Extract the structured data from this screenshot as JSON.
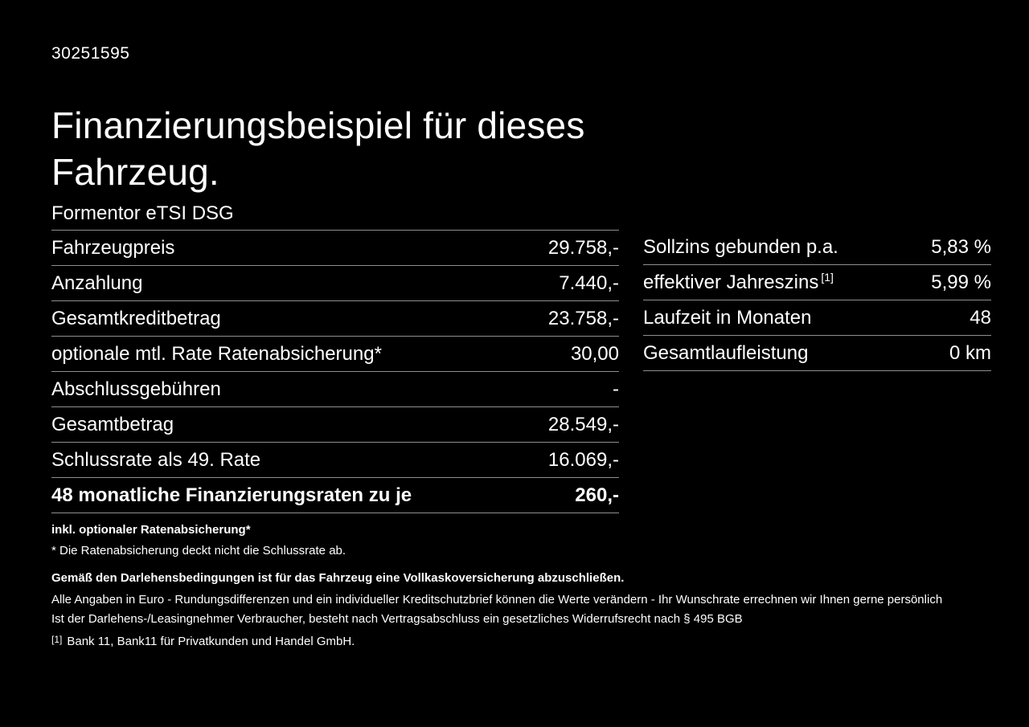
{
  "colors": {
    "background": "#000000",
    "text": "#ffffff",
    "divider": "#8f8f8f"
  },
  "header": {
    "vehicle_id": "30251595",
    "title": "Finanzierungsbeispiel für dieses Fahrzeug."
  },
  "left_table": {
    "model": "Formentor eTSI DSG",
    "rows": [
      {
        "label": "Fahrzeugpreis",
        "value": "29.758,-"
      },
      {
        "label": "Anzahlung",
        "value": "7.440,-"
      },
      {
        "label": "Gesamtkreditbetrag",
        "value": "23.758,-"
      },
      {
        "label": "optionale mtl. Rate Ratenabsicherung*",
        "value": "30,00"
      },
      {
        "label": "Abschlussgebühren",
        "value": "-"
      },
      {
        "label": "Gesamtbetrag",
        "value": "28.549,-"
      },
      {
        "label": "Schlussrate als 49. Rate",
        "value": "16.069,-"
      },
      {
        "label": "48 monatliche Finanzierungsraten zu je",
        "value": "260,-",
        "bold": true
      }
    ]
  },
  "right_table": {
    "rows": [
      {
        "label": "Sollzins gebunden p.a.",
        "value": "5,83 %"
      },
      {
        "label": "effektiver Jahreszins",
        "footnote_marker": "[1]",
        "value": "5,99 %"
      },
      {
        "label": "Laufzeit in Monaten",
        "value": "48"
      },
      {
        "label": "Gesamtlaufleistung",
        "value": "0 km"
      }
    ]
  },
  "footnotes": {
    "rate_protection_title": "inkl. optionaler Ratenabsicherung*",
    "rate_protection_text": "* Die Ratenabsicherung deckt nicht die Schlussrate ab.",
    "insurance_note": "Gemäß den Darlehensbedingungen ist für das Fahrzeug eine Vollkaskoversicherung abzuschließen.",
    "disclaimer_line1": "Alle Angaben in Euro - Rundungsdifferenzen und ein individueller Kreditschutzbrief können die Werte verändern - Ihr Wunschrate errechnen wir Ihnen gerne persönlich",
    "disclaimer_line2": "Ist der Darlehens-/Leasingnehmer Verbraucher, besteht nach Vertragsabschluss ein gesetzliches Widerrufsrecht nach § 495 BGB",
    "bank_marker": "[1]",
    "bank_note": "Bank 11, Bank11 für Privatkunden und Handel GmbH."
  }
}
